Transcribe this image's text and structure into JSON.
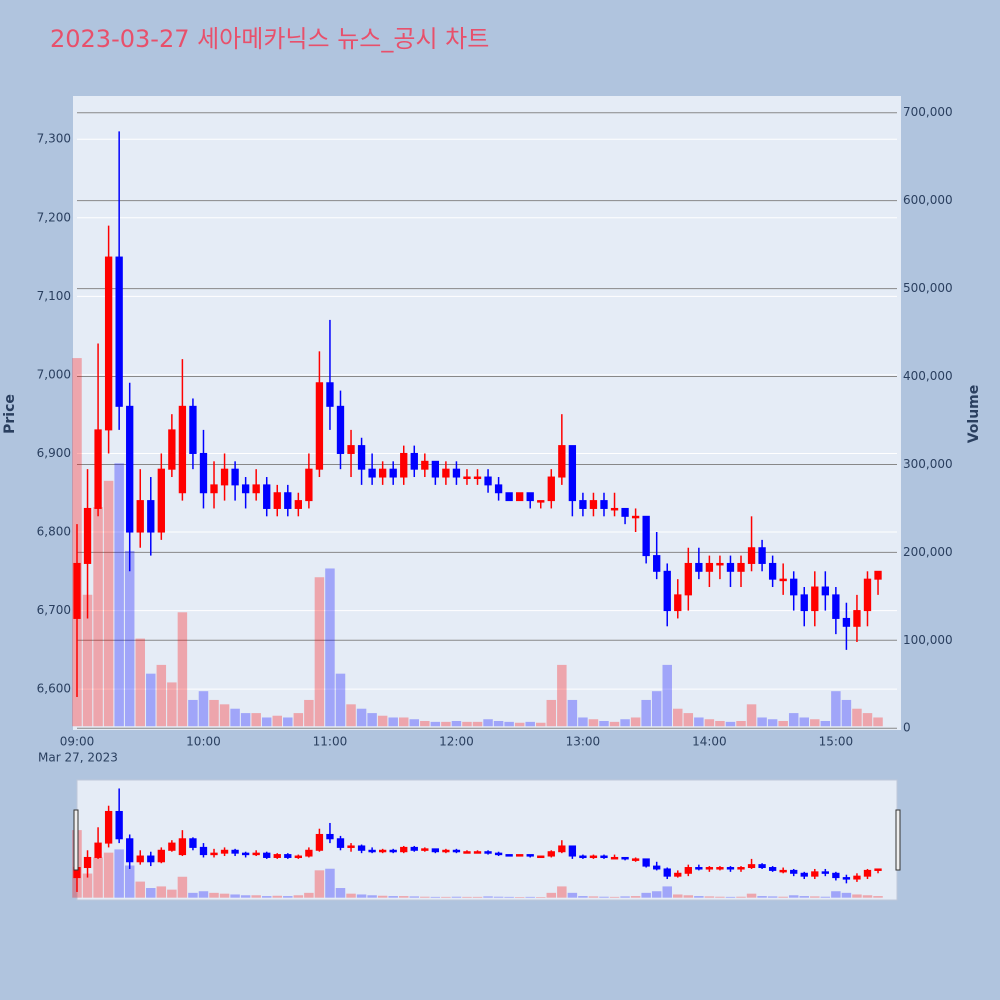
{
  "chart_data": {
    "type": "candlestick",
    "title": "2023-03-27 세아메카닉스 뉴스_공시 차트",
    "y_label": "Price",
    "y2_label": "Volume",
    "x_date_label": "Mar 27, 2023",
    "increasing_color": "#ff0000",
    "decreasing_color": "#0000ff",
    "x": [
      "09:00",
      "09:05",
      "09:10",
      "09:15",
      "09:20",
      "09:25",
      "09:30",
      "09:35",
      "09:40",
      "09:45",
      "09:50",
      "09:55",
      "10:00",
      "10:05",
      "10:10",
      "10:15",
      "10:20",
      "10:25",
      "10:30",
      "10:35",
      "10:40",
      "10:45",
      "10:50",
      "10:55",
      "11:00",
      "11:05",
      "11:10",
      "11:15",
      "11:20",
      "11:25",
      "11:30",
      "11:35",
      "11:40",
      "11:45",
      "11:50",
      "11:55",
      "12:00",
      "12:05",
      "12:10",
      "12:15",
      "12:20",
      "12:25",
      "12:30",
      "12:35",
      "12:40",
      "12:45",
      "12:50",
      "12:55",
      "13:00",
      "13:05",
      "13:10",
      "13:15",
      "13:20",
      "13:25",
      "13:30",
      "13:35",
      "13:40",
      "13:45",
      "13:50",
      "13:55",
      "14:00",
      "14:05",
      "14:10",
      "14:15",
      "14:20",
      "14:25",
      "14:30",
      "14:35",
      "14:40",
      "14:45",
      "14:50",
      "14:55",
      "15:00",
      "15:05",
      "15:10",
      "15:15",
      "15:20"
    ],
    "open": [
      6690,
      6760,
      6830,
      6930,
      7150,
      6960,
      6800,
      6840,
      6800,
      6880,
      6850,
      6960,
      6900,
      6850,
      6860,
      6880,
      6860,
      6850,
      6860,
      6830,
      6850,
      6830,
      6840,
      6880,
      6990,
      6960,
      6900,
      6910,
      6880,
      6870,
      6880,
      6870,
      6900,
      6880,
      6890,
      6870,
      6880,
      6870,
      6870,
      6870,
      6860,
      6850,
      6840,
      6850,
      6840,
      6840,
      6870,
      6910,
      6840,
      6830,
      6840,
      6830,
      6830,
      6820,
      6820,
      6770,
      6750,
      6700,
      6720,
      6760,
      6750,
      6760,
      6760,
      6750,
      6760,
      6780,
      6760,
      6740,
      6740,
      6720,
      6700,
      6730,
      6720,
      6690,
      6680,
      6700,
      6740
    ],
    "high": [
      6810,
      6880,
      7040,
      7190,
      7310,
      6990,
      6880,
      6870,
      6900,
      6950,
      7020,
      6970,
      6930,
      6890,
      6900,
      6890,
      6870,
      6880,
      6870,
      6860,
      6860,
      6850,
      6900,
      7030,
      7070,
      6980,
      6930,
      6920,
      6900,
      6890,
      6890,
      6910,
      6910,
      6900,
      6890,
      6890,
      6890,
      6880,
      6880,
      6880,
      6870,
      6850,
      6850,
      6850,
      6840,
      6880,
      6950,
      6910,
      6850,
      6850,
      6850,
      6850,
      6830,
      6830,
      6820,
      6800,
      6760,
      6740,
      6780,
      6780,
      6770,
      6770,
      6770,
      6770,
      6820,
      6790,
      6770,
      6760,
      6750,
      6730,
      6750,
      6750,
      6730,
      6710,
      6720,
      6750,
      6750
    ],
    "low": [
      6590,
      6690,
      6820,
      6900,
      6930,
      6750,
      6780,
      6770,
      6790,
      6870,
      6840,
      6880,
      6830,
      6830,
      6840,
      6840,
      6830,
      6840,
      6820,
      6820,
      6820,
      6820,
      6830,
      6870,
      6930,
      6880,
      6870,
      6860,
      6860,
      6860,
      6860,
      6860,
      6870,
      6870,
      6860,
      6860,
      6860,
      6860,
      6860,
      6850,
      6840,
      6840,
      6840,
      6830,
      6830,
      6830,
      6860,
      6820,
      6820,
      6820,
      6820,
      6820,
      6810,
      6800,
      6760,
      6740,
      6680,
      6690,
      6700,
      6740,
      6730,
      6740,
      6730,
      6730,
      6750,
      6750,
      6730,
      6720,
      6700,
      6680,
      6680,
      6700,
      6670,
      6650,
      6660,
      6680,
      6720
    ],
    "close": [
      6760,
      6830,
      6930,
      7150,
      6960,
      6800,
      6840,
      6800,
      6880,
      6930,
      6960,
      6900,
      6850,
      6860,
      6880,
      6860,
      6850,
      6860,
      6830,
      6850,
      6830,
      6840,
      6880,
      6990,
      6960,
      6900,
      6910,
      6880,
      6870,
      6880,
      6870,
      6900,
      6880,
      6890,
      6870,
      6880,
      6870,
      6870,
      6870,
      6860,
      6850,
      6840,
      6850,
      6840,
      6840,
      6870,
      6910,
      6840,
      6830,
      6840,
      6830,
      6830,
      6820,
      6820,
      6770,
      6750,
      6700,
      6720,
      6760,
      6750,
      6760,
      6760,
      6750,
      6760,
      6780,
      6760,
      6740,
      6740,
      6720,
      6700,
      6730,
      6720,
      6690,
      6680,
      6700,
      6740,
      6750
    ],
    "volume": [
      420000,
      150000,
      250000,
      280000,
      300000,
      200000,
      100000,
      60000,
      70000,
      50000,
      130000,
      30000,
      40000,
      30000,
      25000,
      20000,
      15000,
      15000,
      10000,
      12000,
      10000,
      15000,
      30000,
      170000,
      180000,
      60000,
      25000,
      20000,
      15000,
      12000,
      10000,
      10000,
      8000,
      6000,
      5000,
      5000,
      6000,
      5000,
      5000,
      8000,
      6000,
      5000,
      4000,
      5000,
      4000,
      30000,
      70000,
      30000,
      10000,
      8000,
      6000,
      5000,
      8000,
      10000,
      30000,
      40000,
      70000,
      20000,
      15000,
      10000,
      8000,
      6000,
      5000,
      6000,
      25000,
      10000,
      8000,
      6000,
      15000,
      10000,
      8000,
      6000,
      40000,
      30000,
      20000,
      15000,
      10000
    ],
    "xlim": [
      "09:00",
      "15:29"
    ],
    "xticks": [
      "09:00",
      "10:00",
      "11:00",
      "12:00",
      "13:00",
      "14:00",
      "15:00"
    ],
    "ylim": [
      6548,
      7355
    ],
    "yticks": [
      {
        "value": 6600,
        "label": "6,600"
      },
      {
        "value": 6700,
        "label": "6,700"
      },
      {
        "value": 6800,
        "label": "6,800"
      },
      {
        "value": 6900,
        "label": "6,900"
      },
      {
        "value": 7000,
        "label": "7,000"
      },
      {
        "value": 7100,
        "label": "7,100"
      },
      {
        "value": 7200,
        "label": "7,200"
      },
      {
        "value": 7300,
        "label": "7,300"
      }
    ],
    "y2lim": [
      -2000,
      719000
    ],
    "y2ticks": [
      0,
      {
        "value": 100000,
        "label": "100,000"
      },
      {
        "value": 200000,
        "label": "200,000"
      },
      {
        "value": 300000,
        "label": "300,000"
      },
      {
        "value": 400000,
        "label": "400,000"
      },
      {
        "value": 500000,
        "label": "500,000"
      },
      {
        "value": 600000,
        "label": "600,000"
      },
      {
        "value": 700000,
        "label": "700,000"
      }
    ],
    "grid": true,
    "rangeslider": true
  }
}
